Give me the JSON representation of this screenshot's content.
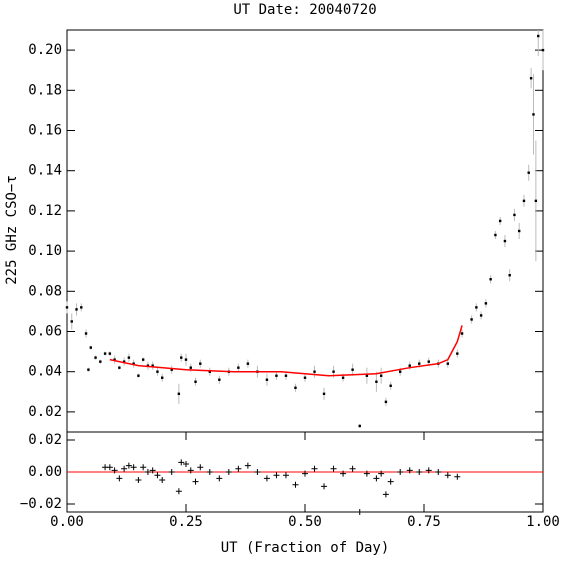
{
  "chart_data": [
    {
      "type": "scatter",
      "title": "UT Date: 20040720",
      "y_label": "225 GHz CSO−τ",
      "xlim": [
        0,
        1
      ],
      "ylim": [
        0.01,
        0.21
      ],
      "yticks": [
        {
          "value": 0.02,
          "label": "0.02"
        },
        {
          "value": 0.04,
          "label": "0.04"
        },
        {
          "value": 0.06,
          "label": "0.06"
        },
        {
          "value": 0.08,
          "label": "0.08"
        },
        {
          "value": 0.1,
          "label": "0.10"
        },
        {
          "value": 0.12,
          "label": "0.12"
        },
        {
          "value": 0.14,
          "label": "0.14"
        },
        {
          "value": 0.16,
          "label": "0.16"
        },
        {
          "value": 0.18,
          "label": "0.18"
        },
        {
          "value": 0.2,
          "label": "0.20"
        }
      ],
      "series": [
        {
          "color": "#000000",
          "error_color": "#bbbbbb",
          "x": [
            0.0,
            0.01,
            0.02,
            0.03,
            0.04,
            0.045,
            0.05,
            0.06,
            0.07,
            0.08,
            0.09,
            0.1,
            0.11,
            0.12,
            0.13,
            0.14,
            0.15,
            0.16,
            0.17,
            0.18,
            0.19,
            0.2,
            0.22,
            0.235,
            0.24,
            0.25,
            0.26,
            0.27,
            0.28,
            0.3,
            0.32,
            0.34,
            0.36,
            0.38,
            0.4,
            0.42,
            0.44,
            0.46,
            0.48,
            0.5,
            0.52,
            0.54,
            0.56,
            0.58,
            0.6,
            0.615,
            0.63,
            0.65,
            0.66,
            0.67,
            0.68,
            0.7,
            0.72,
            0.74,
            0.76,
            0.78,
            0.8,
            0.82,
            0.83,
            0.85,
            0.86,
            0.87,
            0.88,
            0.89,
            0.9,
            0.91,
            0.92,
            0.93,
            0.94,
            0.95,
            0.96,
            0.97,
            0.975,
            0.98,
            0.985,
            0.99,
            1.0
          ],
          "values": [
            0.072,
            0.065,
            0.071,
            0.072,
            0.059,
            0.041,
            0.052,
            0.047,
            0.045,
            0.049,
            0.049,
            0.046,
            0.042,
            0.045,
            0.047,
            0.044,
            0.038,
            0.046,
            0.043,
            0.043,
            0.04,
            0.037,
            0.041,
            0.029,
            0.047,
            0.046,
            0.042,
            0.035,
            0.044,
            0.04,
            0.036,
            0.04,
            0.042,
            0.044,
            0.04,
            0.036,
            0.038,
            0.038,
            0.032,
            0.037,
            0.04,
            0.029,
            0.04,
            0.037,
            0.041,
            0.013,
            0.038,
            0.035,
            0.038,
            0.025,
            0.033,
            0.04,
            0.043,
            0.044,
            0.045,
            0.044,
            0.044,
            0.049,
            0.059,
            0.066,
            0.072,
            0.068,
            0.074,
            0.086,
            0.108,
            0.115,
            0.105,
            0.088,
            0.118,
            0.11,
            0.125,
            0.139,
            0.186,
            0.168,
            0.125,
            0.207,
            0.2
          ],
          "errors": [
            0.003,
            0.004,
            0.003,
            0.002,
            0.002,
            0.001,
            0.001,
            0.001,
            0.001,
            0.001,
            0.001,
            0.002,
            0.001,
            0.002,
            0.002,
            0.002,
            0.001,
            0.001,
            0.002,
            0.002,
            0.002,
            0.002,
            0.002,
            0.005,
            0.002,
            0.003,
            0.002,
            0.002,
            0.002,
            0.002,
            0.002,
            0.002,
            0.002,
            0.002,
            0.003,
            0.003,
            0.002,
            0.002,
            0.002,
            0.002,
            0.003,
            0.003,
            0.003,
            0.002,
            0.003,
            0.001,
            0.004,
            0.005,
            0.004,
            0.002,
            0.002,
            0.002,
            0.002,
            0.002,
            0.002,
            0.002,
            0.002,
            0.002,
            0.002,
            0.002,
            0.002,
            0.002,
            0.002,
            0.002,
            0.002,
            0.002,
            0.003,
            0.003,
            0.003,
            0.004,
            0.003,
            0.004,
            0.005,
            0.02,
            0.03,
            0.01,
            0.01
          ]
        },
        {
          "color": "#ff0000",
          "line": true,
          "x": [
            0.09,
            0.15,
            0.25,
            0.35,
            0.45,
            0.55,
            0.65,
            0.72,
            0.78,
            0.8,
            0.82,
            0.83
          ],
          "values": [
            0.046,
            0.043,
            0.041,
            0.04,
            0.04,
            0.038,
            0.039,
            0.042,
            0.044,
            0.046,
            0.055,
            0.063
          ]
        }
      ]
    },
    {
      "type": "residual",
      "x_label": "UT (Fraction of Day)",
      "xlim": [
        0,
        1
      ],
      "ylim": [
        -0.025,
        0.025
      ],
      "xticks": [
        {
          "value": 0,
          "label": "0.00"
        },
        {
          "value": 0.25,
          "label": "0.25"
        },
        {
          "value": 0.5,
          "label": "0.50"
        },
        {
          "value": 0.75,
          "label": "0.75"
        },
        {
          "value": 1,
          "label": "1.00"
        }
      ],
      "yticks": [
        {
          "value": -0.02,
          "label": "−0.02"
        },
        {
          "value": 0,
          "label": "0.00"
        },
        {
          "value": 0.02,
          "label": "0.02"
        }
      ],
      "zero_color": "#ff0000",
      "series": [
        {
          "color": "#000000",
          "x": [
            0.08,
            0.09,
            0.1,
            0.11,
            0.12,
            0.13,
            0.14,
            0.15,
            0.16,
            0.17,
            0.18,
            0.19,
            0.2,
            0.22,
            0.235,
            0.24,
            0.25,
            0.26,
            0.27,
            0.28,
            0.3,
            0.32,
            0.34,
            0.36,
            0.38,
            0.4,
            0.42,
            0.44,
            0.46,
            0.48,
            0.5,
            0.52,
            0.54,
            0.56,
            0.58,
            0.6,
            0.615,
            0.63,
            0.65,
            0.66,
            0.67,
            0.68,
            0.7,
            0.72,
            0.74,
            0.76,
            0.78,
            0.8,
            0.82
          ],
          "values": [
            0.003,
            0.003,
            0.001,
            -0.004,
            0.002,
            0.004,
            0.003,
            -0.005,
            0.003,
            0.0,
            0.001,
            -0.002,
            -0.005,
            0.0,
            -0.012,
            0.006,
            0.005,
            0.001,
            -0.006,
            0.003,
            0.0,
            -0.004,
            0.0,
            0.002,
            0.004,
            0.0,
            -0.004,
            -0.002,
            -0.002,
            -0.008,
            -0.001,
            0.002,
            -0.009,
            0.002,
            -0.001,
            0.002,
            -0.025,
            -0.001,
            -0.004,
            -0.001,
            -0.014,
            -0.006,
            0.0,
            0.001,
            0.0,
            0.001,
            0.0,
            -0.002,
            -0.003
          ]
        }
      ]
    }
  ]
}
